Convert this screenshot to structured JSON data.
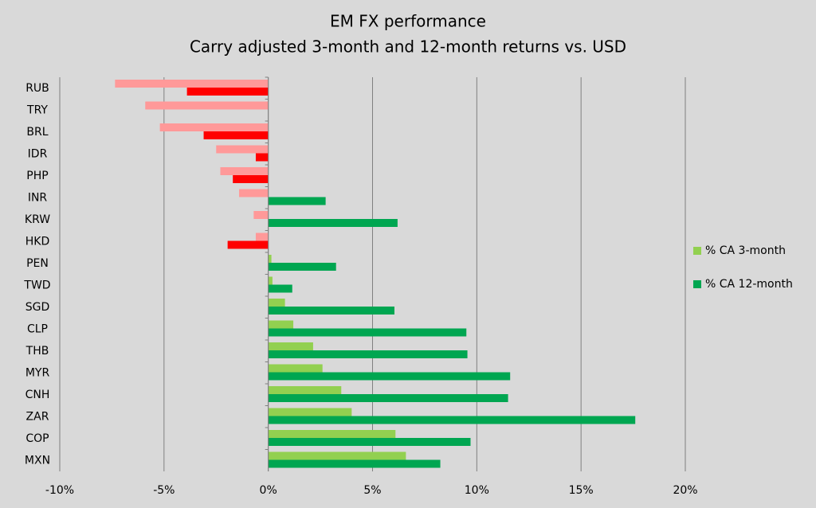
{
  "chart_data": {
    "type": "bar",
    "orientation": "horizontal",
    "title": "EM FX performance",
    "subtitle": "Carry adjusted 3-month and 12-month returns vs. USD",
    "categories": [
      "RUB",
      "TRY",
      "BRL",
      "IDR",
      "PHP",
      "INR",
      "KRW",
      "HKD",
      "PEN",
      "TWD",
      "SGD",
      "CLP",
      "THB",
      "MYR",
      "CNH",
      "ZAR",
      "COP",
      "MXN"
    ],
    "series": [
      {
        "name": "% CA 3-month",
        "color": "#92d050",
        "negative_color": "#ff9999",
        "values": [
          -7.35,
          -5.9,
          -5.2,
          -2.5,
          -2.3,
          -1.4,
          -0.7,
          -0.6,
          0.15,
          0.2,
          0.8,
          1.2,
          2.15,
          2.6,
          3.5,
          4.0,
          6.1,
          6.6
        ]
      },
      {
        "name": "% CA 12-month",
        "color": "#00a651",
        "negative_color": "#ff0000",
        "values": [
          -3.9,
          0,
          -3.1,
          -0.6,
          -1.7,
          2.75,
          6.2,
          -1.95,
          3.25,
          1.15,
          6.05,
          9.5,
          9.55,
          11.6,
          11.5,
          17.6,
          9.7,
          8.25
        ]
      }
    ],
    "xlim": [
      -10,
      20
    ],
    "xticks": [
      {
        "value": -10,
        "label": "-10%"
      },
      {
        "value": -5,
        "label": "-5%"
      },
      {
        "value": 0,
        "label": "0%"
      },
      {
        "value": 5,
        "label": "5%"
      },
      {
        "value": 10,
        "label": "10%"
      },
      {
        "value": 15,
        "label": "15%"
      },
      {
        "value": 20,
        "label": "20%"
      }
    ],
    "grid": true,
    "legend": "right"
  }
}
